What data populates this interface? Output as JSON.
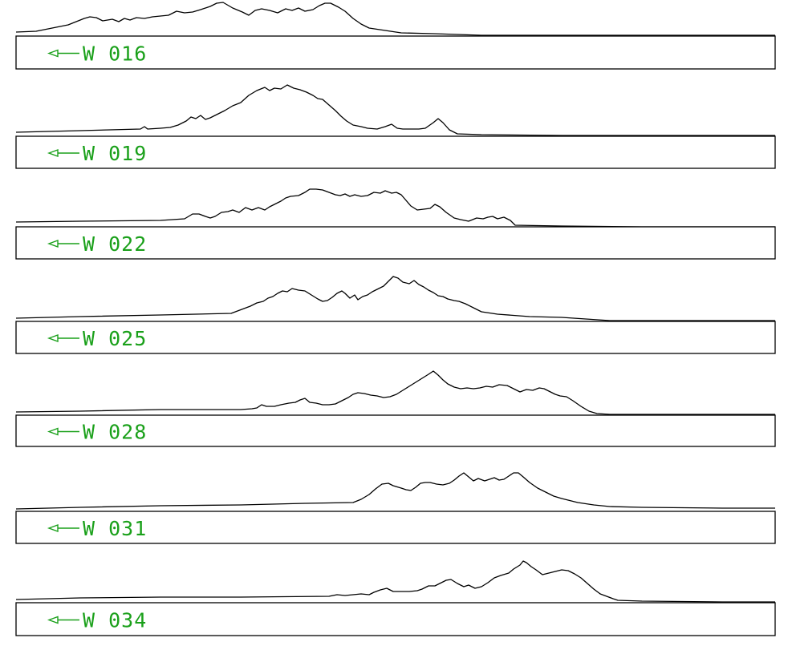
{
  "colors": {
    "line": "#000000",
    "label": "#1aa01a",
    "background": "#ffffff"
  },
  "direction_icon": "left-arrow-icon",
  "chart_data": {
    "type": "line",
    "panels": [
      {
        "label": "W 016",
        "direction": "W",
        "bearing": "016"
      },
      {
        "label": "W 019",
        "direction": "W",
        "bearing": "019"
      },
      {
        "label": "W 022",
        "direction": "W",
        "bearing": "022"
      },
      {
        "label": "W 025",
        "direction": "W",
        "bearing": "025"
      },
      {
        "label": "W 028",
        "direction": "W",
        "bearing": "028"
      },
      {
        "label": "W 031",
        "direction": "W",
        "bearing": "031"
      },
      {
        "label": "W 034",
        "direction": "W",
        "bearing": "034"
      }
    ]
  }
}
